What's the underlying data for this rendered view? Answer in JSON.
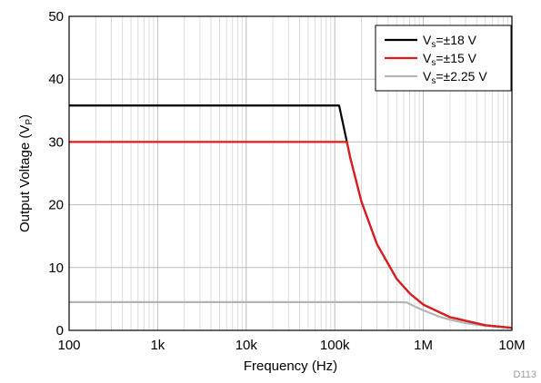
{
  "chart_data": {
    "type": "line",
    "title": "",
    "xlabel": "Frequency (Hz)",
    "ylabel": "Output Voltage (V",
    "ylabel_subscript": "P",
    "ylabel_close": ")",
    "x_scale": "log",
    "xlim": [
      100,
      10000000
    ],
    "ylim": [
      0,
      50
    ],
    "x_ticks": [
      {
        "value": 100,
        "label": "100"
      },
      {
        "value": 1000,
        "label": "1k"
      },
      {
        "value": 10000,
        "label": "10k"
      },
      {
        "value": 100000,
        "label": "100k"
      },
      {
        "value": 1000000,
        "label": "1M"
      },
      {
        "value": 10000000,
        "label": "10M"
      }
    ],
    "y_ticks": [
      0,
      10,
      20,
      30,
      40,
      50
    ],
    "grid": true,
    "legend_position": "top-right",
    "series": [
      {
        "name_prefix": "V",
        "name_sub": "s",
        "name_suffix": "=±18 V",
        "color": "#000000",
        "x": [
          100,
          1000,
          10000,
          100000,
          112000,
          150000,
          200000,
          300000,
          500000,
          700000,
          1000000,
          2000000,
          5000000,
          10000000
        ],
        "y": [
          35.8,
          35.8,
          35.8,
          35.8,
          35.8,
          27.4,
          20.5,
          13.7,
          8.2,
          5.9,
          4.1,
          2.1,
          0.82,
          0.41
        ]
      },
      {
        "name_prefix": "V",
        "name_sub": "s",
        "name_suffix": "=±15 V",
        "color": "#e31a1c",
        "x": [
          100,
          1000,
          10000,
          100000,
          137000,
          150000,
          200000,
          300000,
          500000,
          700000,
          1000000,
          2000000,
          5000000,
          10000000
        ],
        "y": [
          30.0,
          30.0,
          30.0,
          30.0,
          30.0,
          27.4,
          20.5,
          13.7,
          8.2,
          5.9,
          4.1,
          2.1,
          0.82,
          0.41
        ]
      },
      {
        "name_prefix": "V",
        "name_sub": "s",
        "name_suffix": "=±2.25 V",
        "color": "#b4b4b4",
        "x": [
          100,
          1000,
          10000,
          100000,
          500000,
          650000,
          800000,
          1000000,
          1500000,
          2000000,
          3000000,
          5000000,
          10000000
        ],
        "y": [
          4.5,
          4.5,
          4.5,
          4.5,
          4.5,
          4.45,
          3.8,
          3.2,
          2.2,
          1.7,
          1.15,
          0.72,
          0.37
        ]
      }
    ],
    "figure_id": "D113"
  }
}
